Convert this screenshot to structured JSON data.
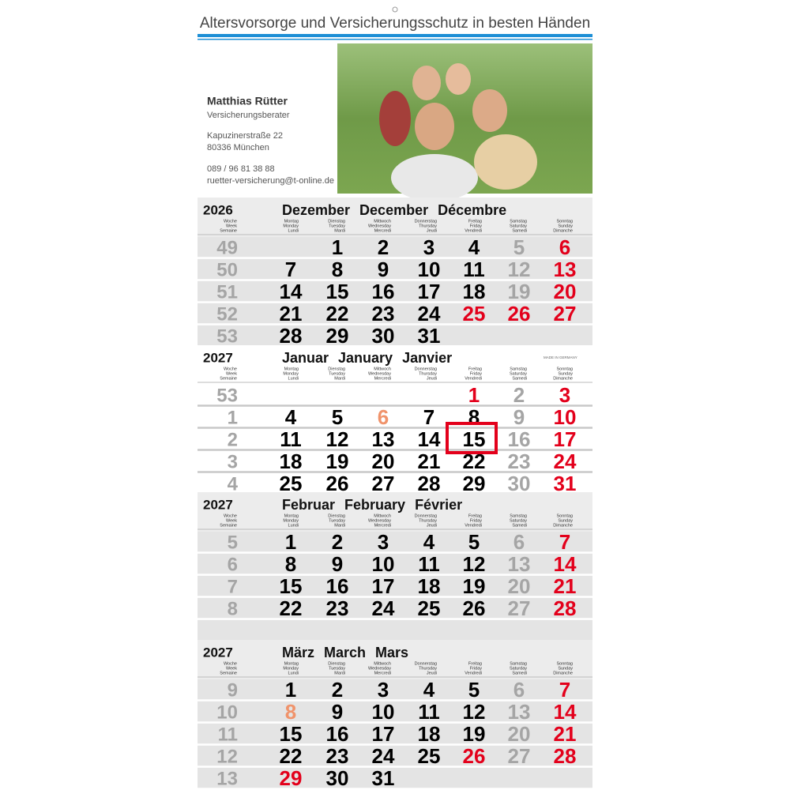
{
  "header": {
    "tagline": "Altersvorsorge und Versicherungsschutz in besten Händen"
  },
  "contact": {
    "name": "Matthias Rütter",
    "title": "Versicherungsberater",
    "street": "Kapuzinerstraße 22",
    "city": "80336 München",
    "phone": "089 / 96 81 38 88",
    "email": "ruetter-versicherung@t-online.de"
  },
  "made_in": "MADE IN GERMANY",
  "weekday_labels": [
    [
      "Woche",
      "Week",
      "Semaine"
    ],
    [
      "Montag",
      "Monday",
      "Lundi"
    ],
    [
      "Dienstag",
      "Tuesday",
      "Mardi"
    ],
    [
      "Mittwoch",
      "Wednesday",
      "Mercredi"
    ],
    [
      "Donnerstag",
      "Thursday",
      "Jeudi"
    ],
    [
      "Freitag",
      "Friday",
      "Vendredi"
    ],
    [
      "Samstag",
      "Saturday",
      "Samedi"
    ],
    [
      "Sonntag",
      "Sunday",
      "Dimanche"
    ]
  ],
  "months": [
    {
      "year": "2026",
      "names": [
        "Dezember",
        "December",
        "Décembre"
      ],
      "weeks": [
        {
          "week": 49,
          "days": [
            null,
            1,
            2,
            3,
            4,
            5,
            6
          ]
        },
        {
          "week": 50,
          "days": [
            7,
            8,
            9,
            10,
            11,
            12,
            13
          ]
        },
        {
          "week": 51,
          "days": [
            14,
            15,
            16,
            17,
            18,
            19,
            20
          ]
        },
        {
          "week": 52,
          "days": [
            21,
            22,
            23,
            24,
            25,
            26,
            27
          ]
        },
        {
          "week": 53,
          "days": [
            28,
            29,
            30,
            31,
            null,
            null,
            null
          ]
        }
      ]
    },
    {
      "year": "2027",
      "names": [
        "Januar",
        "January",
        "Janvier"
      ],
      "weeks": [
        {
          "week": 53,
          "days": [
            null,
            null,
            null,
            null,
            1,
            2,
            3
          ]
        },
        {
          "week": 1,
          "days": [
            4,
            5,
            6,
            7,
            8,
            9,
            10
          ]
        },
        {
          "week": 2,
          "days": [
            11,
            12,
            13,
            14,
            15,
            16,
            17
          ]
        },
        {
          "week": 3,
          "days": [
            18,
            19,
            20,
            21,
            22,
            23,
            24
          ]
        },
        {
          "week": 4,
          "days": [
            25,
            26,
            27,
            28,
            29,
            30,
            31
          ]
        }
      ]
    },
    {
      "year": "2027",
      "names": [
        "Februar",
        "February",
        "Février"
      ],
      "weeks": [
        {
          "week": 5,
          "days": [
            1,
            2,
            3,
            4,
            5,
            6,
            7
          ]
        },
        {
          "week": 6,
          "days": [
            8,
            9,
            10,
            11,
            12,
            13,
            14
          ]
        },
        {
          "week": 7,
          "days": [
            15,
            16,
            17,
            18,
            19,
            20,
            21
          ]
        },
        {
          "week": 8,
          "days": [
            22,
            23,
            24,
            25,
            26,
            27,
            28
          ]
        }
      ]
    },
    {
      "year": "2027",
      "names": [
        "März",
        "March",
        "Mars"
      ],
      "weeks": [
        {
          "week": 9,
          "days": [
            1,
            2,
            3,
            4,
            5,
            6,
            7
          ]
        },
        {
          "week": 10,
          "days": [
            8,
            9,
            10,
            11,
            12,
            13,
            14
          ]
        },
        {
          "week": 11,
          "days": [
            15,
            16,
            17,
            18,
            19,
            20,
            21
          ]
        },
        {
          "week": 12,
          "days": [
            22,
            23,
            24,
            25,
            26,
            27,
            28
          ]
        },
        {
          "week": 13,
          "days": [
            29,
            30,
            31,
            null,
            null,
            null,
            null
          ]
        }
      ]
    }
  ]
}
